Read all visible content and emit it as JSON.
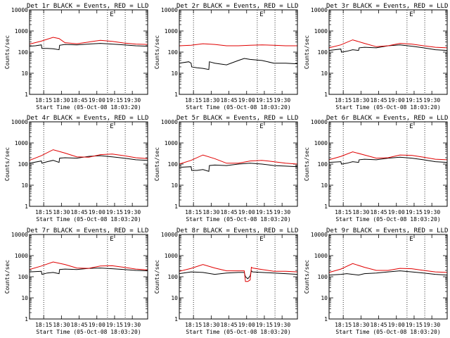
{
  "figure": {
    "ylabel": "Counts/sec",
    "xlabel": "Start Time (05-Oct-08 18:03:20)",
    "x_tick_labels": [
      "18:15",
      "18:30",
      "18:45",
      "19:00",
      "19:15",
      "19:30"
    ],
    "y_tick_labels": [
      "1",
      "10",
      "100",
      "1000",
      "10000"
    ],
    "marker_label": "E"
  },
  "colors": {
    "events": "#000000",
    "lld": "#e00000"
  },
  "chart_data": [
    {
      "type": "line",
      "title": "Det 1r BLACK = Events, RED = LLD",
      "x_unit": "minutes since 18:03:20",
      "y_scale": "log",
      "ylim": [
        1,
        10000
      ],
      "xlim": [
        0,
        100
      ],
      "vlines": [
        12,
        66,
        81
      ],
      "marker_x": 68,
      "series": [
        {
          "name": "Events",
          "x": [
            0,
            5,
            10,
            10.5,
            15,
            20,
            25,
            25.5,
            30,
            40,
            50,
            60,
            70,
            80,
            90,
            100
          ],
          "y": [
            190,
            200,
            220,
            150,
            150,
            145,
            130,
            210,
            230,
            220,
            240,
            260,
            240,
            220,
            200,
            190
          ]
        },
        {
          "name": "LLD",
          "x": [
            0,
            10,
            20,
            25,
            30,
            40,
            50,
            60,
            70,
            80,
            90,
            100
          ],
          "y": [
            240,
            330,
            500,
            440,
            280,
            250,
            300,
            360,
            320,
            270,
            240,
            230
          ]
        }
      ]
    },
    {
      "type": "line",
      "title": "Det 2r BLACK = Events, RED = LLD",
      "x_unit": "minutes since 18:03:20",
      "y_scale": "log",
      "ylim": [
        1,
        10000
      ],
      "xlim": [
        0,
        100
      ],
      "vlines": [
        12,
        66,
        81
      ],
      "marker_x": 68,
      "series": [
        {
          "name": "Events",
          "x": [
            0,
            8,
            10,
            10.5,
            15,
            20,
            25,
            25.5,
            30,
            40,
            50,
            55,
            60,
            70,
            80,
            90,
            100
          ],
          "y": [
            30,
            35,
            30,
            20,
            18,
            17,
            15,
            35,
            30,
            25,
            40,
            50,
            45,
            40,
            30,
            30,
            28
          ]
        },
        {
          "name": "LLD",
          "x": [
            0,
            10,
            20,
            30,
            40,
            50,
            60,
            70,
            80,
            90,
            100
          ],
          "y": [
            200,
            210,
            250,
            230,
            200,
            200,
            210,
            220,
            210,
            200,
            200
          ]
        }
      ]
    },
    {
      "type": "line",
      "title": "Det 3r BLACK = Events, RED = LLD",
      "x_unit": "minutes since 18:03:20",
      "y_scale": "log",
      "ylim": [
        1,
        10000
      ],
      "xlim": [
        0,
        100
      ],
      "vlines": [
        12,
        66,
        81
      ],
      "marker_x": 68,
      "series": [
        {
          "name": "Events",
          "x": [
            0,
            10,
            10.5,
            15,
            20,
            25,
            25.5,
            30,
            40,
            50,
            60,
            70,
            80,
            90,
            100
          ],
          "y": [
            120,
            140,
            100,
            110,
            130,
            120,
            160,
            170,
            160,
            200,
            220,
            190,
            160,
            130,
            120
          ]
        },
        {
          "name": "LLD",
          "x": [
            0,
            10,
            20,
            30,
            40,
            50,
            60,
            70,
            80,
            90,
            100
          ],
          "y": [
            160,
            220,
            380,
            260,
            180,
            200,
            260,
            240,
            200,
            170,
            160
          ]
        }
      ]
    },
    {
      "type": "line",
      "title": "Det 4r BLACK = Events, RED = LLD",
      "x_unit": "minutes since 18:03:20",
      "y_scale": "log",
      "ylim": [
        1,
        10000
      ],
      "xlim": [
        0,
        100
      ],
      "vlines": [
        12,
        66,
        81
      ],
      "marker_x": 68,
      "series": [
        {
          "name": "Events",
          "x": [
            0,
            10,
            10.5,
            15,
            20,
            25,
            25.5,
            30,
            40,
            50,
            60,
            70,
            80,
            90,
            100
          ],
          "y": [
            110,
            140,
            110,
            130,
            150,
            120,
            190,
            200,
            190,
            230,
            250,
            220,
            190,
            160,
            150
          ]
        },
        {
          "name": "LLD",
          "x": [
            0,
            10,
            20,
            30,
            40,
            50,
            60,
            70,
            80,
            90,
            100
          ],
          "y": [
            150,
            250,
            480,
            330,
            220,
            210,
            280,
            300,
            250,
            200,
            180
          ]
        }
      ]
    },
    {
      "type": "line",
      "title": "Det 5r BLACK = Events, RED = LLD",
      "x_unit": "minutes since 18:03:20",
      "y_scale": "log",
      "ylim": [
        1,
        10000
      ],
      "xlim": [
        0,
        100
      ],
      "vlines": [
        12,
        66,
        81
      ],
      "marker_x": 68,
      "series": [
        {
          "name": "Events",
          "x": [
            0,
            10,
            10.5,
            15,
            20,
            25,
            25.5,
            30,
            40,
            50,
            60,
            70,
            80,
            90,
            100
          ],
          "y": [
            70,
            75,
            50,
            50,
            55,
            45,
            85,
            90,
            85,
            100,
            110,
            100,
            85,
            80,
            75
          ]
        },
        {
          "name": "LLD",
          "x": [
            0,
            10,
            20,
            30,
            40,
            50,
            60,
            70,
            80,
            90,
            100
          ],
          "y": [
            100,
            150,
            270,
            180,
            110,
            110,
            140,
            150,
            130,
            110,
            100
          ]
        }
      ]
    },
    {
      "type": "line",
      "title": "Det 6r BLACK = Events, RED = LLD",
      "x_unit": "minutes since 18:03:20",
      "y_scale": "log",
      "ylim": [
        1,
        10000
      ],
      "xlim": [
        0,
        100
      ],
      "vlines": [
        12,
        66,
        81
      ],
      "marker_x": 68,
      "series": [
        {
          "name": "Events",
          "x": [
            0,
            10,
            10.5,
            15,
            20,
            25,
            25.5,
            30,
            40,
            50,
            60,
            70,
            80,
            90,
            100
          ],
          "y": [
            120,
            130,
            100,
            110,
            130,
            120,
            160,
            170,
            160,
            190,
            210,
            190,
            160,
            130,
            120
          ]
        },
        {
          "name": "LLD",
          "x": [
            0,
            10,
            20,
            30,
            40,
            50,
            60,
            70,
            80,
            90,
            100
          ],
          "y": [
            160,
            230,
            380,
            270,
            190,
            200,
            270,
            260,
            210,
            170,
            160
          ]
        }
      ]
    },
    {
      "type": "line",
      "title": "Det 7r BLACK = Events, RED = LLD",
      "x_unit": "minutes since 18:03:20",
      "y_scale": "log",
      "ylim": [
        1,
        10000
      ],
      "xlim": [
        0,
        100
      ],
      "vlines": [
        12,
        66,
        81
      ],
      "marker_x": 68,
      "series": [
        {
          "name": "Events",
          "x": [
            0,
            10,
            10.5,
            15,
            20,
            25,
            25.5,
            30,
            40,
            50,
            60,
            70,
            80,
            90,
            100
          ],
          "y": [
            170,
            180,
            130,
            150,
            160,
            140,
            220,
            230,
            220,
            250,
            260,
            240,
            220,
            200,
            190
          ]
        },
        {
          "name": "LLD",
          "x": [
            0,
            10,
            20,
            30,
            40,
            50,
            60,
            70,
            80,
            90,
            100
          ],
          "y": [
            220,
            320,
            500,
            380,
            260,
            250,
            320,
            330,
            280,
            230,
            210
          ]
        }
      ]
    },
    {
      "type": "line",
      "title": "Det 8r BLACK = Events, RED = LLD",
      "x_unit": "minutes since 18:03:20",
      "y_scale": "log",
      "ylim": [
        1,
        10000
      ],
      "xlim": [
        0,
        100
      ],
      "vlines": [
        12,
        66,
        81
      ],
      "marker_x": 68,
      "series": [
        {
          "name": "Events",
          "x": [
            0,
            10,
            20,
            30,
            40,
            50,
            55,
            56,
            58,
            60,
            61,
            62,
            70,
            80,
            90,
            100
          ],
          "y": [
            140,
            170,
            160,
            130,
            150,
            160,
            160,
            100,
            80,
            110,
            190,
            170,
            160,
            150,
            140,
            130
          ]
        },
        {
          "name": "LLD",
          "x": [
            0,
            10,
            20,
            30,
            40,
            50,
            55,
            56,
            58,
            60,
            61,
            62,
            70,
            80,
            90,
            100
          ],
          "y": [
            180,
            250,
            380,
            260,
            190,
            190,
            190,
            60,
            60,
            70,
            280,
            260,
            220,
            180,
            180,
            170
          ]
        }
      ]
    },
    {
      "type": "line",
      "title": "Det 9r BLACK = Events, RED = LLD",
      "x_unit": "minutes since 18:03:20",
      "y_scale": "log",
      "ylim": [
        1,
        10000
      ],
      "xlim": [
        0,
        100
      ],
      "vlines": [
        12,
        66,
        81
      ],
      "marker_x": 68,
      "series": [
        {
          "name": "Events",
          "x": [
            0,
            10,
            15,
            20,
            25,
            30,
            40,
            50,
            60,
            70,
            80,
            90,
            100
          ],
          "y": [
            120,
            130,
            140,
            130,
            120,
            140,
            150,
            170,
            190,
            170,
            150,
            130,
            120
          ]
        },
        {
          "name": "LLD",
          "x": [
            0,
            10,
            20,
            30,
            40,
            50,
            60,
            70,
            80,
            90,
            100
          ],
          "y": [
            160,
            230,
            420,
            280,
            200,
            200,
            250,
            240,
            200,
            170,
            160
          ]
        }
      ]
    }
  ]
}
